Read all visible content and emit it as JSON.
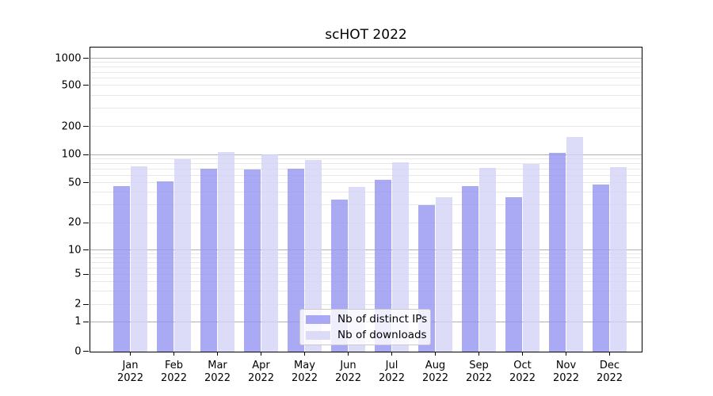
{
  "figure": {
    "background": "#ffffff",
    "spine_color": "#000000",
    "major_grid_color": "#b0b0b0",
    "minor_grid_color": "#e8e8e8"
  },
  "chart_data": {
    "type": "bar",
    "title": "scHOT 2022",
    "xlabel": "",
    "ylabel": "",
    "yscale": "symlog",
    "ylim": [
      0,
      1300
    ],
    "grid": true,
    "legend_position": "lower center",
    "yticks": [
      0,
      1,
      2,
      5,
      10,
      20,
      50,
      100,
      200,
      500,
      1000
    ],
    "ytick_labels": [
      "0",
      "1",
      "2",
      "5",
      "10",
      "20",
      "50",
      "100",
      "200",
      "500",
      "1000"
    ],
    "categories": [
      "Jan 2022",
      "Feb 2022",
      "Mar 2022",
      "Apr 2022",
      "May 2022",
      "Jun 2022",
      "Jul 2022",
      "Aug 2022",
      "Sep 2022",
      "Oct 2022",
      "Nov 2022",
      "Dec 2022"
    ],
    "series": [
      {
        "name": "Nb of distinct IPs",
        "color": "#9494f1",
        "opacity": 0.8,
        "values": [
          46,
          52,
          70,
          69,
          70,
          34,
          54,
          30,
          46,
          36,
          105,
          48
        ]
      },
      {
        "name": "Nb of downloads",
        "color": "#d3d3f6",
        "opacity": 0.8,
        "values": [
          75,
          90,
          106,
          100,
          88,
          45,
          83,
          36,
          72,
          80,
          155,
          74
        ]
      }
    ]
  }
}
